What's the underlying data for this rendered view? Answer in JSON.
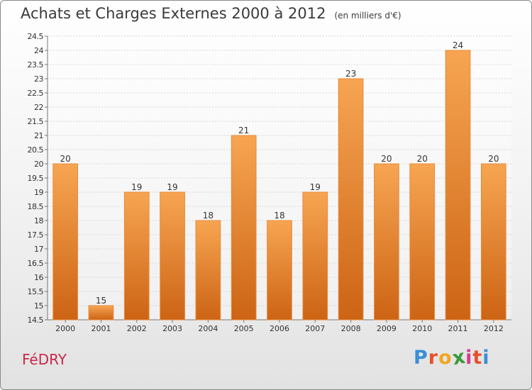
{
  "chart_data": {
    "type": "bar",
    "title": "Achats et Charges Externes 2000 à 2012",
    "subtitle": "(en milliers d'€)",
    "categories": [
      "2000",
      "2001",
      "2002",
      "2003",
      "2004",
      "2005",
      "2006",
      "2007",
      "2008",
      "2009",
      "2010",
      "2011",
      "2012"
    ],
    "values": [
      20,
      15,
      19,
      19,
      18,
      21,
      18,
      19,
      23,
      20,
      20,
      24,
      20
    ],
    "ylim": [
      14.5,
      24.5
    ],
    "yticks": [
      14.5,
      15,
      15.5,
      16,
      16.5,
      17,
      17.5,
      18,
      18.5,
      19,
      19.5,
      20,
      20.5,
      21,
      21.5,
      22,
      22.5,
      23,
      23.5,
      24,
      24.5
    ],
    "grid": true,
    "bar_color": "#ef8a2c"
  },
  "commune": "FéDRY",
  "brand": {
    "letters": [
      "P",
      "r",
      "o",
      "x",
      "i",
      "t",
      "i"
    ],
    "colors": [
      "#3a8fd6",
      "#e8502a",
      "#f2a51f",
      "#3a9a3a",
      "#d43c8a",
      "#e8502a",
      "#3a8fd6"
    ]
  }
}
